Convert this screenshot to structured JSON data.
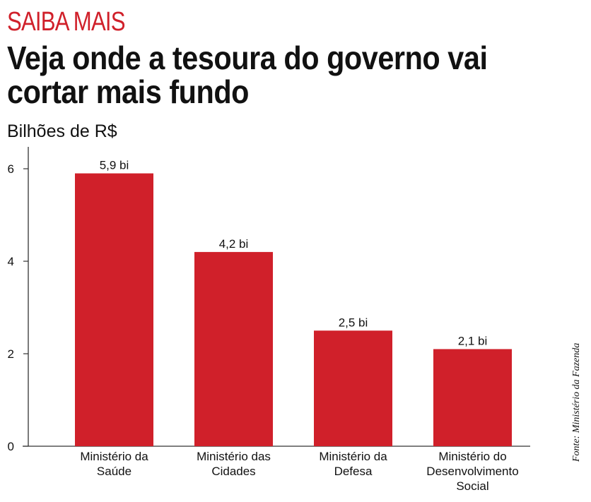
{
  "header": {
    "kicker": "SAIBA MAIS",
    "title": "Veja onde a tesoura do governo vai cortar mais fundo"
  },
  "source": "Fonte: Ministério da Fazenda",
  "colors": {
    "bar": "#d0202a",
    "kicker": "#d0202a",
    "axis": "#333333"
  },
  "chart_data": {
    "type": "bar",
    "title": "Veja onde a tesoura do governo vai cortar mais fundo",
    "ylabel": "Bilhões de R$",
    "xlabel": "",
    "categories": [
      [
        "Ministério da",
        "Saúde"
      ],
      [
        "Ministério das",
        "Cidades"
      ],
      [
        "Ministério da",
        "Defesa"
      ],
      [
        "Ministério do",
        "Desenvolvimento",
        "Social"
      ]
    ],
    "values": [
      5.9,
      4.2,
      2.5,
      2.1
    ],
    "data_labels": [
      "5,9 bi",
      "4,2 bi",
      "2,5 bi",
      "2,1 bi"
    ],
    "yticks": [
      0,
      2,
      4,
      6
    ],
    "ylim": [
      0,
      6.5
    ],
    "grid": false,
    "legend": "none"
  }
}
